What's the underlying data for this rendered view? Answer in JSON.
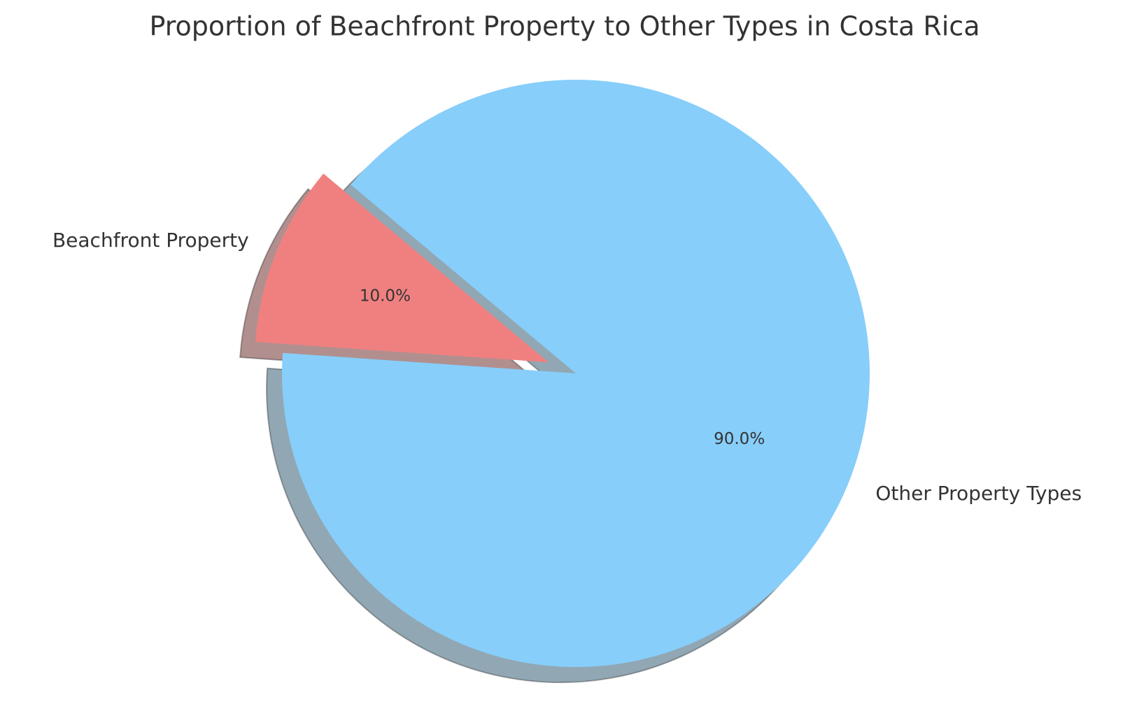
{
  "chart_data": {
    "type": "pie",
    "title": "Proportion of Beachfront Property to Other Types in Costa Rica",
    "categories": [
      "Beachfront Property",
      "Other Property Types"
    ],
    "values": [
      10,
      90
    ],
    "value_labels": [
      "10.0%",
      "90.0%"
    ],
    "colors": [
      "#f08080",
      "#87cefa"
    ]
  }
}
